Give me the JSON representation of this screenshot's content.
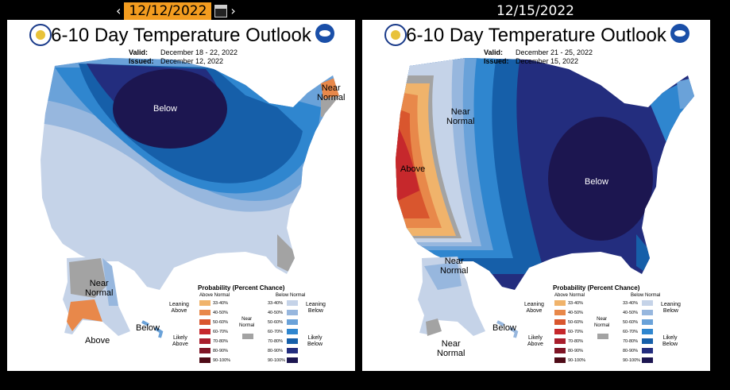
{
  "nav": {
    "prev_icon": "chevron-left-icon",
    "next_icon": "chevron-right-icon",
    "selected_date": "12/12/2022",
    "calendar_icon": "calendar-icon"
  },
  "right_header": {
    "date": "12/15/2022"
  },
  "panels": [
    {
      "title": "6-10 Day Temperature Outlook",
      "valid_label": "Valid:",
      "valid_value": "December 18 - 22, 2022",
      "issued_label": "Issued:",
      "issued_value": "December 12, 2022",
      "labels": {
        "below": "Below",
        "near_ne": "Near\nNormal",
        "near_ak": "Near\nNormal",
        "above_ak": "Above",
        "below_hi": "Below"
      }
    },
    {
      "title": "6-10 Day Temperature Outlook",
      "valid_label": "Valid:",
      "valid_value": "December 21 - 25, 2022",
      "issued_label": "Issued:",
      "issued_value": "December 15, 2022",
      "labels": {
        "above": "Above",
        "near_w": "Near\nNormal",
        "below": "Below",
        "near_ak": "Near\nNormal",
        "near_ak2": "Near\nNormal",
        "below_hi": "Below"
      }
    }
  ],
  "legend": {
    "title": "Probability (Percent Chance)",
    "above_header": "Above Normal",
    "below_header": "Below Normal",
    "leaning_above": "Leaning\nAbove",
    "leaning_below": "Leaning\nBelow",
    "likely_above": "Likely\nAbove",
    "likely_below": "Likely\nBelow",
    "near_normal": "Near\nNormal",
    "ranges": [
      "33-40%",
      "40-50%",
      "50-60%",
      "60-70%",
      "70-80%",
      "80-90%",
      "90-100%"
    ],
    "above_colors": [
      "#f0b36b",
      "#e8884a",
      "#d9562e",
      "#c6282c",
      "#a81d2c",
      "#7e1425",
      "#4e0b17"
    ],
    "below_colors": [
      "#c5d3e8",
      "#97b7de",
      "#6aa2d9",
      "#2f86cf",
      "#165fa9",
      "#232d7e",
      "#1c1650"
    ],
    "near_color": "#a3a3a3"
  }
}
